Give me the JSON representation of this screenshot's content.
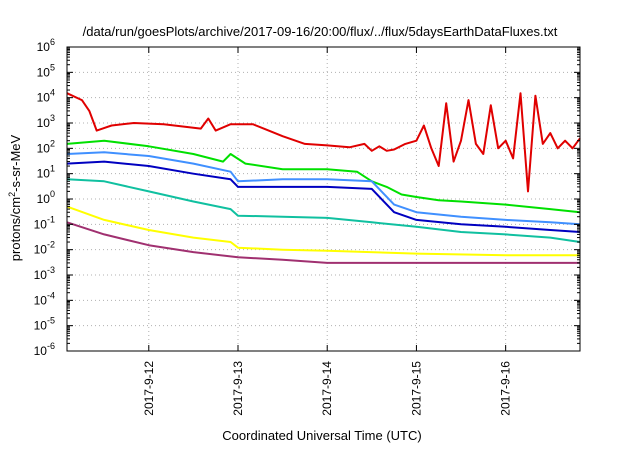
{
  "chart_data": {
    "type": "line",
    "title": "/data/run/goesPlots/archive/2017-09-16/20:00/flux/../flux/5daysEarthDataFluxes.txt",
    "xlabel": "Coordinated Universal Time (UTC)",
    "ylabel": {
      "base": "protons/cm",
      "sup": "2",
      "rest": "-s-sr-MeV"
    },
    "x_scale": "time",
    "xlim": [
      "2017-09-11T02:00",
      "2017-09-16T20:00"
    ],
    "y_scale": "log",
    "ylim": [
      1e-06,
      1000000.0
    ],
    "grid": true,
    "legend": "none",
    "x_ticks": [
      {
        "x": "2017-09-12T00:00",
        "label": "2017-9-12"
      },
      {
        "x": "2017-09-13T00:00",
        "label": "2017-9-13"
      },
      {
        "x": "2017-09-14T00:00",
        "label": "2017-9-14"
      },
      {
        "x": "2017-09-15T00:00",
        "label": "2017-9-15"
      },
      {
        "x": "2017-09-16T00:00",
        "label": "2017-9-16"
      }
    ],
    "y_ticks": [
      {
        "exp": -6,
        "label": "10",
        "sup": "-6"
      },
      {
        "exp": -5,
        "label": "10",
        "sup": "-5"
      },
      {
        "exp": -4,
        "label": "10",
        "sup": "-4"
      },
      {
        "exp": -3,
        "label": "10",
        "sup": "-3"
      },
      {
        "exp": -2,
        "label": "10",
        "sup": "-2"
      },
      {
        "exp": -1,
        "label": "10",
        "sup": "-1"
      },
      {
        "exp": 0,
        "label": "10",
        "sup": "0"
      },
      {
        "exp": 1,
        "label": "10",
        "sup": "1"
      },
      {
        "exp": 2,
        "label": "10",
        "sup": "2"
      },
      {
        "exp": 3,
        "label": "10",
        "sup": "3"
      },
      {
        "exp": 4,
        "label": "10",
        "sup": "4"
      },
      {
        "exp": 5,
        "label": "10",
        "sup": "5"
      },
      {
        "exp": 6,
        "label": "10",
        "sup": "6"
      }
    ],
    "series": [
      {
        "color": "#e00000",
        "x": [
          "2017-09-11T02:00",
          "2017-09-11T06:00",
          "2017-09-11T08:00",
          "2017-09-11T10:00",
          "2017-09-11T14:00",
          "2017-09-11T20:00",
          "2017-09-12T04:00",
          "2017-09-12T10:00",
          "2017-09-12T14:00",
          "2017-09-12T16:00",
          "2017-09-12T18:00",
          "2017-09-12T22:00",
          "2017-09-13T04:00",
          "2017-09-13T12:00",
          "2017-09-13T18:00",
          "2017-09-14T00:00",
          "2017-09-14T06:00",
          "2017-09-14T10:00",
          "2017-09-14T12:00",
          "2017-09-14T14:00",
          "2017-09-14T16:00",
          "2017-09-14T18:00",
          "2017-09-14T21:00",
          "2017-09-15T00:00",
          "2017-09-15T02:00",
          "2017-09-15T04:00",
          "2017-09-15T06:00",
          "2017-09-15T08:00",
          "2017-09-15T10:00",
          "2017-09-15T12:00",
          "2017-09-15T14:00",
          "2017-09-15T16:00",
          "2017-09-15T18:00",
          "2017-09-15T20:00",
          "2017-09-15T22:00",
          "2017-09-16T00:00",
          "2017-09-16T02:00",
          "2017-09-16T04:00",
          "2017-09-16T06:00",
          "2017-09-16T08:00",
          "2017-09-16T10:00",
          "2017-09-16T12:00",
          "2017-09-16T14:00",
          "2017-09-16T16:00",
          "2017-09-16T18:00",
          "2017-09-16T20:00"
        ],
        "values": [
          15000,
          8000,
          3000,
          500,
          800,
          1000,
          900,
          700,
          600,
          1500,
          500,
          900,
          900,
          300,
          150,
          130,
          110,
          150,
          80,
          120,
          80,
          90,
          150,
          200,
          800,
          100,
          20,
          6000,
          30,
          200,
          8000,
          150,
          60,
          5000,
          100,
          200,
          40,
          15000,
          2,
          12000,
          150,
          400,
          100,
          200,
          100,
          250
        ]
      },
      {
        "color": "#00e000",
        "x": [
          "2017-09-11T02:00",
          "2017-09-11T12:00",
          "2017-09-12T00:00",
          "2017-09-12T12:00",
          "2017-09-12T20:00",
          "2017-09-12T22:00",
          "2017-09-13T02:00",
          "2017-09-13T12:00",
          "2017-09-14T00:00",
          "2017-09-14T08:00",
          "2017-09-14T12:00",
          "2017-09-14T16:00",
          "2017-09-14T20:00",
          "2017-09-15T00:00",
          "2017-09-15T06:00",
          "2017-09-15T12:00",
          "2017-09-16T00:00",
          "2017-09-16T12:00",
          "2017-09-16T20:00"
        ],
        "values": [
          150,
          200,
          120,
          60,
          30,
          60,
          25,
          15,
          15,
          12,
          5,
          3,
          1.5,
          1.2,
          0.9,
          0.8,
          0.6,
          0.4,
          0.3
        ]
      },
      {
        "color": "#4090ff",
        "x": [
          "2017-09-11T02:00",
          "2017-09-11T12:00",
          "2017-09-12T00:00",
          "2017-09-12T12:00",
          "2017-09-12T22:00",
          "2017-09-13T00:00",
          "2017-09-13T12:00",
          "2017-09-14T00:00",
          "2017-09-14T12:00",
          "2017-09-14T18:00",
          "2017-09-15T00:00",
          "2017-09-15T12:00",
          "2017-09-16T00:00",
          "2017-09-16T12:00",
          "2017-09-16T20:00"
        ],
        "values": [
          60,
          70,
          50,
          25,
          12,
          5,
          6,
          6,
          5,
          0.6,
          0.3,
          0.2,
          0.15,
          0.12,
          0.1
        ]
      },
      {
        "color": "#0000c0",
        "x": [
          "2017-09-11T02:00",
          "2017-09-11T12:00",
          "2017-09-12T00:00",
          "2017-09-12T12:00",
          "2017-09-12T22:00",
          "2017-09-13T00:00",
          "2017-09-13T12:00",
          "2017-09-14T00:00",
          "2017-09-14T12:00",
          "2017-09-14T18:00",
          "2017-09-15T00:00",
          "2017-09-15T12:00",
          "2017-09-16T00:00",
          "2017-09-16T12:00",
          "2017-09-16T20:00"
        ],
        "values": [
          25,
          30,
          20,
          10,
          6,
          3,
          3,
          3,
          2.5,
          0.3,
          0.15,
          0.1,
          0.08,
          0.06,
          0.05
        ]
      },
      {
        "color": "#10c0a0",
        "x": [
          "2017-09-11T02:00",
          "2017-09-11T12:00",
          "2017-09-12T00:00",
          "2017-09-12T12:00",
          "2017-09-12T22:00",
          "2017-09-13T00:00",
          "2017-09-13T12:00",
          "2017-09-14T00:00",
          "2017-09-14T12:00",
          "2017-09-15T00:00",
          "2017-09-15T12:00",
          "2017-09-16T00:00",
          "2017-09-16T12:00",
          "2017-09-16T20:00"
        ],
        "values": [
          6,
          5,
          2,
          0.8,
          0.4,
          0.22,
          0.2,
          0.18,
          0.12,
          0.08,
          0.05,
          0.04,
          0.03,
          0.02
        ]
      },
      {
        "color": "#ffff00",
        "x": [
          "2017-09-11T02:00",
          "2017-09-11T12:00",
          "2017-09-12T00:00",
          "2017-09-12T12:00",
          "2017-09-12T22:00",
          "2017-09-13T00:00",
          "2017-09-13T12:00",
          "2017-09-14T00:00",
          "2017-09-15T00:00",
          "2017-09-16T00:00",
          "2017-09-16T20:00"
        ],
        "values": [
          0.5,
          0.15,
          0.06,
          0.03,
          0.02,
          0.012,
          0.01,
          0.009,
          0.007,
          0.006,
          0.006
        ]
      },
      {
        "color": "#a03070",
        "x": [
          "2017-09-11T02:00",
          "2017-09-11T12:00",
          "2017-09-12T00:00",
          "2017-09-12T12:00",
          "2017-09-13T00:00",
          "2017-09-13T12:00",
          "2017-09-14T00:00",
          "2017-09-15T00:00",
          "2017-09-16T00:00",
          "2017-09-16T20:00"
        ],
        "values": [
          0.12,
          0.04,
          0.015,
          0.008,
          0.005,
          0.004,
          0.003,
          0.003,
          0.003,
          0.003
        ]
      }
    ]
  }
}
